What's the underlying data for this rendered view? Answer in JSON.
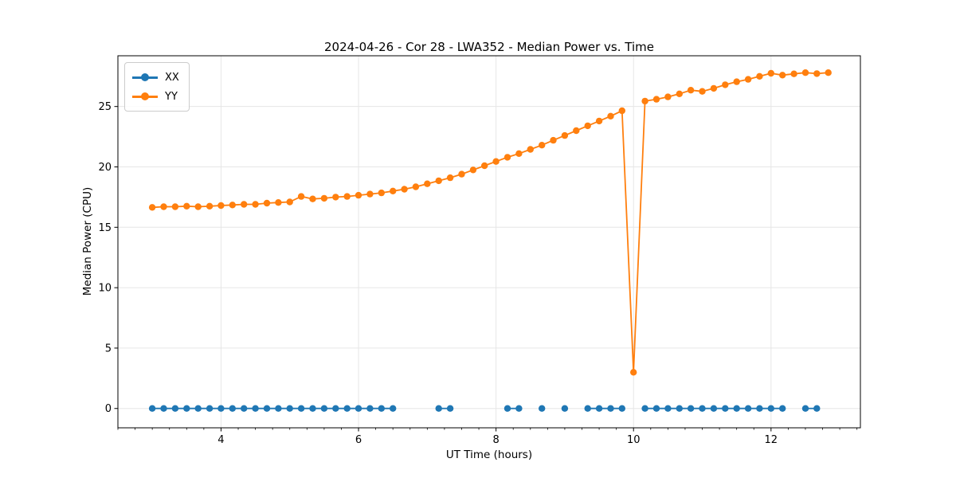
{
  "chart_data": {
    "type": "line",
    "title": "2024-04-26 - Cor 28 - LWA352 - Median Power vs. Time",
    "xlabel": "UT Time (hours)",
    "ylabel": "Median Power (CPU)",
    "xlim": [
      2.5,
      13.3
    ],
    "ylim": [
      -1.6,
      29.2
    ],
    "xticks": [
      4,
      6,
      8,
      10,
      12
    ],
    "yticks": [
      0,
      5,
      10,
      15,
      20,
      25
    ],
    "minor_xtick_step": 0.25,
    "grid": true,
    "legend_position": "upper left",
    "style": {
      "grid_color": "#e6e6e6",
      "axis_color": "#000000",
      "background": "#ffffff",
      "line_width": 1.8,
      "marker_radius": 4.2
    },
    "series": [
      {
        "name": "XX",
        "color": "#1f77b4",
        "points": [
          [
            3.0,
            0
          ],
          [
            3.1667,
            0
          ],
          [
            3.3333,
            0
          ],
          [
            3.5,
            0
          ],
          [
            3.6667,
            0
          ],
          [
            3.8333,
            0
          ],
          [
            4.0,
            0
          ],
          [
            4.1667,
            0
          ],
          [
            4.3333,
            0
          ],
          [
            4.5,
            0
          ],
          [
            4.6667,
            0
          ],
          [
            4.8333,
            0
          ],
          [
            5.0,
            0
          ],
          [
            5.1667,
            0
          ],
          [
            5.3333,
            0
          ],
          [
            5.5,
            0
          ],
          [
            5.6667,
            0
          ],
          [
            5.8333,
            0
          ],
          [
            6.0,
            0
          ],
          [
            6.1667,
            0
          ],
          [
            6.3333,
            0
          ],
          [
            6.5,
            0
          ],
          [
            7.1667,
            0
          ],
          [
            7.3333,
            0
          ],
          [
            8.1667,
            0
          ],
          [
            8.3333,
            0
          ],
          [
            8.6667,
            0
          ],
          [
            9.0,
            0
          ],
          [
            9.3333,
            0
          ],
          [
            9.5,
            0
          ],
          [
            9.6667,
            0
          ],
          [
            9.8333,
            0
          ],
          [
            10.1667,
            0
          ],
          [
            10.3333,
            0
          ],
          [
            10.5,
            0
          ],
          [
            10.6667,
            0
          ],
          [
            10.8333,
            0
          ],
          [
            11.0,
            0
          ],
          [
            11.1667,
            0
          ],
          [
            11.3333,
            0
          ],
          [
            11.5,
            0
          ],
          [
            11.6667,
            0
          ],
          [
            11.8333,
            0
          ],
          [
            12.0,
            0
          ],
          [
            12.1667,
            0
          ],
          [
            12.5,
            0
          ],
          [
            12.6667,
            0
          ]
        ]
      },
      {
        "name": "YY",
        "color": "#ff7f0e",
        "points": [
          [
            3.0,
            16.65
          ],
          [
            3.1667,
            16.7
          ],
          [
            3.3333,
            16.7
          ],
          [
            3.5,
            16.75
          ],
          [
            3.6667,
            16.7
          ],
          [
            3.8333,
            16.75
          ],
          [
            4.0,
            16.8
          ],
          [
            4.1667,
            16.85
          ],
          [
            4.3333,
            16.9
          ],
          [
            4.5,
            16.9
          ],
          [
            4.6667,
            17.0
          ],
          [
            4.8333,
            17.05
          ],
          [
            5.0,
            17.1
          ],
          [
            5.1667,
            17.55
          ],
          [
            5.3333,
            17.35
          ],
          [
            5.5,
            17.4
          ],
          [
            5.6667,
            17.5
          ],
          [
            5.8333,
            17.55
          ],
          [
            6.0,
            17.65
          ],
          [
            6.1667,
            17.75
          ],
          [
            6.3333,
            17.85
          ],
          [
            6.5,
            18.0
          ],
          [
            6.6667,
            18.15
          ],
          [
            6.8333,
            18.35
          ],
          [
            7.0,
            18.6
          ],
          [
            7.1667,
            18.85
          ],
          [
            7.3333,
            19.1
          ],
          [
            7.5,
            19.4
          ],
          [
            7.6667,
            19.75
          ],
          [
            7.8333,
            20.1
          ],
          [
            8.0,
            20.45
          ],
          [
            8.1667,
            20.8
          ],
          [
            8.3333,
            21.1
          ],
          [
            8.5,
            21.45
          ],
          [
            8.6667,
            21.8
          ],
          [
            8.8333,
            22.2
          ],
          [
            9.0,
            22.6
          ],
          [
            9.1667,
            23.0
          ],
          [
            9.3333,
            23.4
          ],
          [
            9.5,
            23.8
          ],
          [
            9.6667,
            24.2
          ],
          [
            9.8333,
            24.65
          ],
          [
            10.0,
            3.0
          ],
          [
            10.1667,
            25.45
          ],
          [
            10.3333,
            25.6
          ],
          [
            10.5,
            25.8
          ],
          [
            10.6667,
            26.05
          ],
          [
            10.8333,
            26.35
          ],
          [
            11.0,
            26.25
          ],
          [
            11.1667,
            26.5
          ],
          [
            11.3333,
            26.8
          ],
          [
            11.5,
            27.05
          ],
          [
            11.6667,
            27.25
          ],
          [
            11.8333,
            27.5
          ],
          [
            12.0,
            27.75
          ],
          [
            12.1667,
            27.6
          ],
          [
            12.3333,
            27.7
          ],
          [
            12.5,
            27.8
          ],
          [
            12.6667,
            27.72
          ],
          [
            12.8333,
            27.8
          ]
        ]
      }
    ]
  }
}
